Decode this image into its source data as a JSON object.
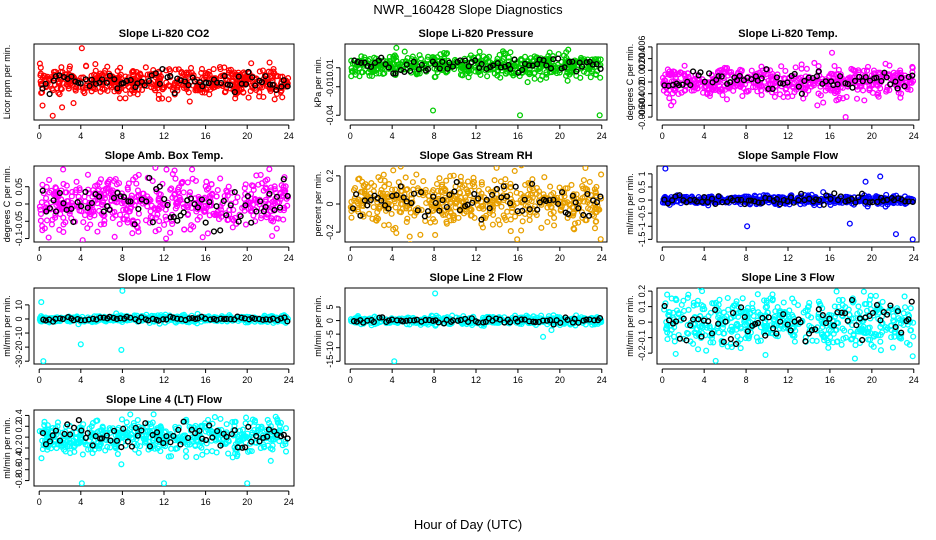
{
  "page": {
    "title": "NWR_160428  Slope Diagnostics",
    "xlabel": "Hour of Day (UTC)"
  },
  "chart_data": [
    {
      "type": "scatter",
      "title": "Slope Li-820 CO2",
      "ylabel": "Licor ppm per min.",
      "ylim": [
        -0.45,
        0.45
      ],
      "yticks": [],
      "xticks": [
        0,
        4,
        8,
        12,
        16,
        20,
        24
      ],
      "xlim": [
        -0.5,
        24.5
      ],
      "series_color": "#ff0000",
      "center": 0.0,
      "spread": 0.08,
      "black_spread": 0.05,
      "outliers": [
        [
          4.1,
          0.4
        ],
        [
          1.3,
          -0.4
        ],
        [
          3.3,
          -0.25
        ],
        [
          2.2,
          -0.3
        ],
        [
          11.5,
          -0.2
        ]
      ]
    },
    {
      "type": "scatter",
      "title": "Slope Li-820 Pressure",
      "ylabel": "kPa per min.",
      "ylim": [
        -0.045,
        0.035
      ],
      "yticks": [
        0.01,
        -0.01,
        -0.04
      ],
      "xticks": [
        0,
        4,
        8,
        12,
        16,
        20,
        24
      ],
      "xlim": [
        -0.5,
        24.5
      ],
      "series_color": "#00cc00",
      "center": 0.012,
      "spread": 0.006,
      "black_spread": 0.004,
      "outliers": [
        [
          7.9,
          -0.035
        ],
        [
          16.2,
          -0.04
        ],
        [
          23.8,
          -0.04
        ],
        [
          20.8,
          0.029
        ],
        [
          5.2,
          0.027
        ]
      ]
    },
    {
      "type": "scatter",
      "title": "Slope Li-820 Temp.",
      "ylabel": "degrees C per min.",
      "ylim": [
        -0.0065,
        0.0065
      ],
      "yticks": [
        0.006,
        0.004,
        0.002,
        0,
        -0.002,
        -0.004,
        -0.006
      ],
      "xticks": [
        0,
        4,
        8,
        12,
        16,
        20,
        24
      ],
      "xlim": [
        -0.5,
        24.5
      ],
      "series_color": "#ff00ff",
      "center": 0.0,
      "spread": 0.0012,
      "black_spread": 0.001,
      "outliers": [
        [
          16.2,
          0.005
        ],
        [
          17.5,
          -0.006
        ],
        [
          14.8,
          -0.004
        ],
        [
          13.3,
          0.003
        ],
        [
          16.8,
          -0.003
        ]
      ]
    },
    {
      "type": "scatter",
      "title": "Slope Amb. Box Temp.",
      "ylabel": "degrees C per min.",
      "ylim": [
        -0.11,
        0.11
      ],
      "yticks": [
        0.05,
        0,
        -0.05,
        -0.1
      ],
      "xticks": [
        0,
        4,
        8,
        12,
        16,
        20,
        24
      ],
      "xlim": [
        -0.5,
        24.5
      ],
      "series_color": "#ff00ff",
      "center": 0.0,
      "spread": 0.04,
      "black_spread": 0.03,
      "outliers": [
        [
          2.3,
          0.1
        ],
        [
          12.2,
          -0.1
        ],
        [
          5.6,
          -0.08
        ]
      ]
    },
    {
      "type": "scatter",
      "title": "Slope Gas Stream RH",
      "ylabel": "percent per min.",
      "ylim": [
        -0.27,
        0.27
      ],
      "yticks": [
        0.2,
        0.0,
        -0.2
      ],
      "xticks": [
        0,
        4,
        8,
        12,
        16,
        20,
        24
      ],
      "xlim": [
        -0.5,
        24.5
      ],
      "series_color": "#e8a000",
      "center": 0.02,
      "spread": 0.09,
      "black_spread": 0.06,
      "outliers": [
        [
          23.9,
          -0.25
        ],
        [
          8.1,
          -0.22
        ],
        [
          4.1,
          -0.18
        ]
      ]
    },
    {
      "type": "scatter",
      "title": "Slope Sample Flow",
      "ylabel": "ml/min per min.",
      "ylim": [
        -1.6,
        1.3
      ],
      "yticks": [
        1.0,
        0.5,
        0.0,
        -0.5,
        -1.0,
        -1.5
      ],
      "xticks": [
        0,
        4,
        8,
        12,
        16,
        20,
        24
      ],
      "xlim": [
        -0.5,
        24.5
      ],
      "series_color": "#0000ff",
      "center": 0.0,
      "spread": 0.08,
      "black_spread": 0.1,
      "outliers": [
        [
          0.3,
          1.2
        ],
        [
          23.9,
          -1.5
        ],
        [
          8.1,
          -1.0
        ],
        [
          22.3,
          -1.3
        ],
        [
          20.8,
          0.9
        ],
        [
          19.4,
          0.7
        ],
        [
          17.9,
          -0.9
        ]
      ]
    },
    {
      "type": "scatter",
      "title": "Slope Line 1 Flow",
      "ylabel": "ml/min per min.",
      "ylim": [
        -32,
        22
      ],
      "yticks": [
        10,
        0,
        -10,
        -20,
        -30
      ],
      "xticks": [
        0,
        4,
        8,
        12,
        16,
        20,
        24
      ],
      "xlim": [
        -0.5,
        24.5
      ],
      "series_color": "#00ffff",
      "center": 0.0,
      "spread": 1.2,
      "black_spread": 0.8,
      "outliers": [
        [
          8.0,
          20
        ],
        [
          0.4,
          -30
        ],
        [
          7.9,
          -22
        ],
        [
          4.0,
          -18
        ],
        [
          0.2,
          12
        ]
      ]
    },
    {
      "type": "scatter",
      "title": "Slope Line 2 Flow",
      "ylabel": "ml/min per min.",
      "ylim": [
        -16,
        12
      ],
      "yticks": [
        5,
        0,
        -5,
        -10,
        -15
      ],
      "xticks": [
        0,
        4,
        8,
        12,
        16,
        20,
        24
      ],
      "xlim": [
        -0.5,
        24.5
      ],
      "series_color": "#00ffff",
      "center": 0.0,
      "spread": 0.7,
      "black_spread": 0.6,
      "outliers": [
        [
          8.1,
          10
        ],
        [
          4.2,
          -15
        ],
        [
          18.4,
          -6
        ],
        [
          19.2,
          -3.5
        ]
      ]
    },
    {
      "type": "scatter",
      "title": "Slope Line 3 Flow",
      "ylabel": "ml/min per min.",
      "ylim": [
        -0.27,
        0.22
      ],
      "yticks": [
        0.2,
        0.1,
        0.0,
        -0.1,
        -0.2
      ],
      "xticks": [
        0,
        4,
        8,
        12,
        16,
        20,
        24
      ],
      "xlim": [
        -0.5,
        24.5
      ],
      "series_color": "#00ffff",
      "center": 0.0,
      "spread": 0.08,
      "black_spread": 0.07,
      "outliers": [
        [
          23.9,
          -0.22
        ],
        [
          5.1,
          -0.25
        ],
        [
          3.8,
          0.2
        ]
      ]
    },
    {
      "type": "scatter",
      "title": "Slope Line 4 (LT) Flow",
      "ylabel": "ml/min per min.",
      "ylim": [
        -0.9,
        0.5
      ],
      "yticks": [
        0.4,
        0.2,
        0.0,
        -0.2,
        -0.4,
        -0.6,
        -0.8
      ],
      "xticks": [
        0,
        4,
        8,
        12,
        16,
        20,
        24
      ],
      "xlim": [
        -0.5,
        24.5
      ],
      "series_color": "#00ffff",
      "center": 0.0,
      "spread": 0.15,
      "black_spread": 0.12,
      "outliers": [
        [
          4.1,
          -0.85
        ],
        [
          12.0,
          -0.85
        ],
        [
          20.0,
          -0.85
        ],
        [
          11.0,
          0.42
        ],
        [
          7.9,
          -0.5
        ]
      ]
    }
  ]
}
